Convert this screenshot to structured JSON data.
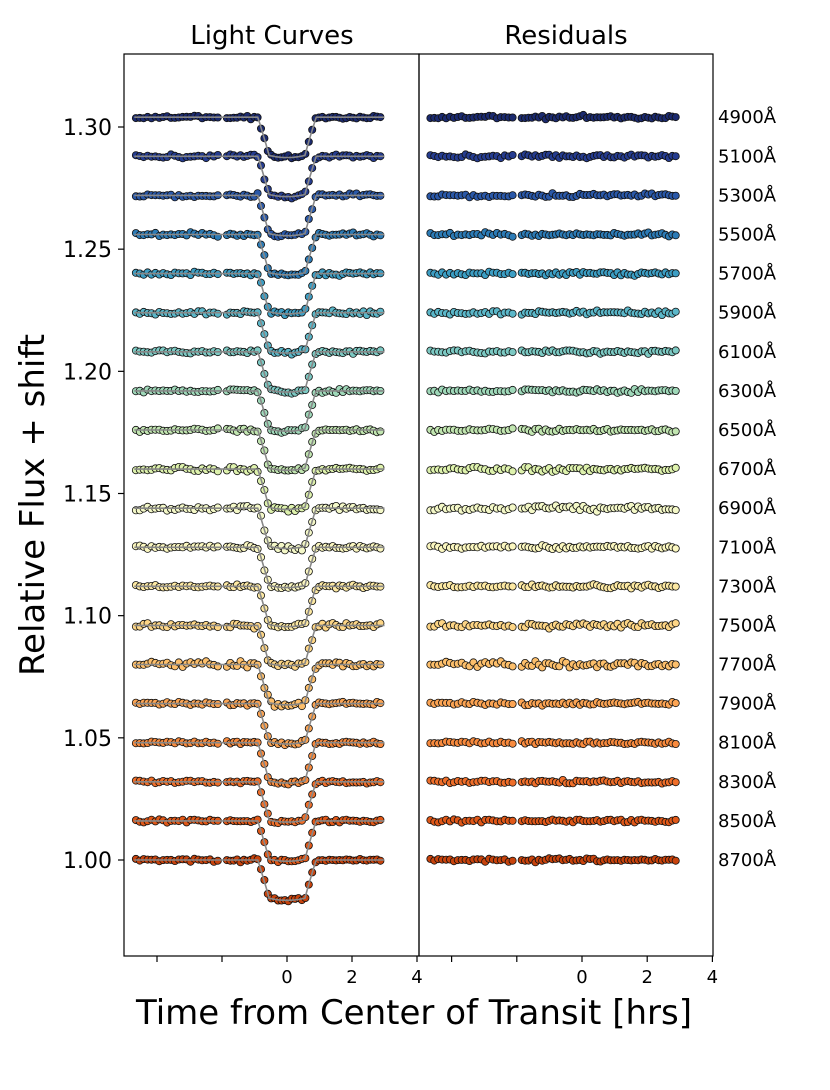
{
  "chart_data": {
    "type": "scatter",
    "panels": [
      {
        "title": "Light Curves",
        "xticks": [
          "0",
          "2",
          "4"
        ]
      },
      {
        "title": "Residuals",
        "xticks": [
          "0",
          "2",
          "4"
        ]
      }
    ],
    "xlabel": "Time from Center of Transit [hrs]",
    "ylabel": "Relative Flux + shift",
    "yticks": [
      "1.00",
      "1.05",
      "1.10",
      "1.15",
      "1.20",
      "1.25",
      "1.30"
    ],
    "ylim": [
      0.96,
      1.33
    ],
    "xlim": [
      -5,
      4
    ],
    "transit_depth": 0.0165,
    "transit_t14_hrs": 1.8,
    "series": [
      {
        "name": "4900Å",
        "offset": 1.304,
        "color": "#1b2a6e"
      },
      {
        "name": "5100Å",
        "offset": 1.288,
        "color": "#253c8f"
      },
      {
        "name": "5300Å",
        "offset": 1.272,
        "color": "#2a58a8"
      },
      {
        "name": "5500Å",
        "offset": 1.256,
        "color": "#2c7bb6"
      },
      {
        "name": "5700Å",
        "offset": 1.24,
        "color": "#3c9ec4"
      },
      {
        "name": "5900Å",
        "offset": 1.224,
        "color": "#5bb7c9"
      },
      {
        "name": "6100Å",
        "offset": 1.208,
        "color": "#7cc9c3"
      },
      {
        "name": "6300Å",
        "offset": 1.192,
        "color": "#9fd8b9"
      },
      {
        "name": "6500Å",
        "offset": 1.176,
        "color": "#c2e6b1"
      },
      {
        "name": "6700Å",
        "offset": 1.16,
        "color": "#def2ad"
      },
      {
        "name": "6900Å",
        "offset": 1.144,
        "color": "#f4f8c8"
      },
      {
        "name": "7100Å",
        "offset": 1.128,
        "color": "#fbf7c0"
      },
      {
        "name": "7300Å",
        "offset": 1.112,
        "color": "#fde9a3"
      },
      {
        "name": "7500Å",
        "offset": 1.096,
        "color": "#fdd585"
      },
      {
        "name": "7700Å",
        "offset": 1.08,
        "color": "#fdbf6b"
      },
      {
        "name": "7900Å",
        "offset": 1.064,
        "color": "#fca453"
      },
      {
        "name": "8100Å",
        "offset": 1.048,
        "color": "#f88a3d"
      },
      {
        "name": "8300Å",
        "offset": 1.032,
        "color": "#ef6e29"
      },
      {
        "name": "8500Å",
        "offset": 1.016,
        "color": "#e05818"
      },
      {
        "name": "8700Å",
        "offset": 1.0,
        "color": "#c8430c"
      }
    ]
  }
}
